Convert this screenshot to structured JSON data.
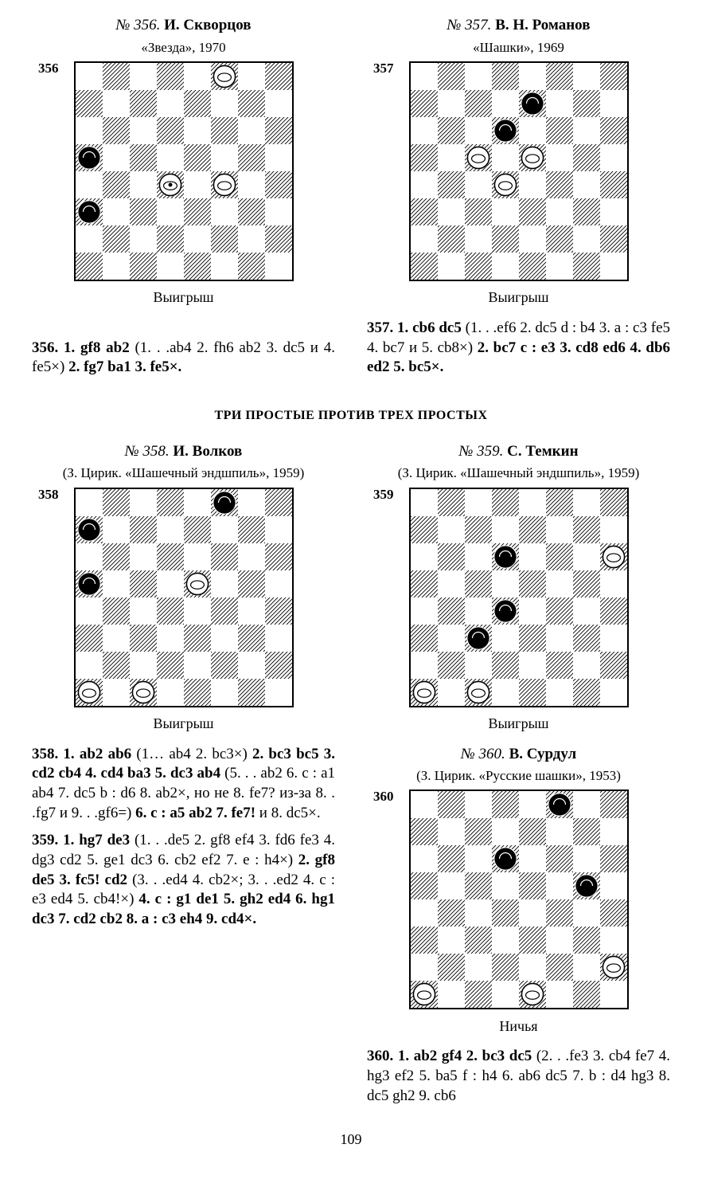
{
  "page_number": "109",
  "section_title": "ТРИ ПРОСТЫЕ ПРОТИВ ТРЕХ ПРОСТЫХ",
  "board_style": {
    "cell": 34,
    "light_fill": "#ffffff",
    "dark_fill_pattern": true,
    "outline": "#000000"
  },
  "problems": {
    "p356": {
      "num_label": "№ 356.",
      "author": "И. Скворцов",
      "source": "«Звезда», 1970",
      "diag_no": "356",
      "caption": "Выигрыш",
      "solution_html": "<b>356. 1. gf8 ab2</b> (1. . .ab4 2. fh6 ab2 3. dc5 и 4. fe5×) <b>2. fg7 ba1 3. fe5×.</b>",
      "pieces": [
        {
          "sq": "f8",
          "color": "white",
          "king": false
        },
        {
          "sq": "a5",
          "color": "black",
          "king": false
        },
        {
          "sq": "d4",
          "color": "white",
          "king": true
        },
        {
          "sq": "f4",
          "color": "white",
          "king": false
        },
        {
          "sq": "a3",
          "color": "black",
          "king": false
        }
      ]
    },
    "p357": {
      "num_label": "№ 357.",
      "author": "В. Н. Романов",
      "source": "«Шашки», 1969",
      "diag_no": "357",
      "caption": "Выигрыш",
      "solution_html": "<b>357. 1. cb6 dc5</b> (1. . .ef6 2. dc5 d : b4 3. a : c3 fe5 4. bc7 и 5. cb8×) <b>2. bc7 c : e3 3. cd8 ed6 4. db6 ed2 5. bc5×.</b>",
      "pieces": [
        {
          "sq": "e7",
          "color": "black",
          "king": false
        },
        {
          "sq": "d6",
          "color": "black",
          "king": false
        },
        {
          "sq": "c5",
          "color": "white",
          "king": false
        },
        {
          "sq": "e5",
          "color": "white",
          "king": false
        },
        {
          "sq": "d4",
          "color": "white",
          "king": false
        }
      ]
    },
    "p358": {
      "num_label": "№ 358.",
      "author": "И. Волков",
      "source": "(З. Цирик. «Шашечный эндшпиль», 1959)",
      "diag_no": "358",
      "caption": "Выигрыш",
      "solution_html": "<b>358. 1. ab2 ab6</b> (1… ab4 2. bc3×) <b>2. bc3 bc5 3. cd2 cb4 4. cd4 ba3 5. dc3 ab4</b> (5. . . ab2 6. c : a1 ab4 7. dc5 b : d6 8. ab2×, но не 8. fe7? из-за 8. . .fg7 и 9. . .gf6=) <b>6. c : a5 ab2 7. fe7!</b> и 8. dc5×.",
      "pieces": [
        {
          "sq": "f8",
          "color": "black",
          "king": false
        },
        {
          "sq": "a7",
          "color": "black",
          "king": false
        },
        {
          "sq": "e5",
          "color": "white",
          "king": false
        },
        {
          "sq": "a5",
          "color": "black",
          "king": false
        },
        {
          "sq": "a1",
          "color": "white",
          "king": false
        },
        {
          "sq": "c1",
          "color": "white",
          "king": false
        }
      ]
    },
    "p359": {
      "num_label": "№ 359.",
      "author": "С. Темкин",
      "source": "(З. Цирик. «Шашечный эндшпиль», 1959)",
      "diag_no": "359",
      "caption": "Выигрыш",
      "solution_html": "<b>359. 1. hg7 de3</b> (1. . .de5 2. gf8 ef4 3. fd6 fe3 4. dg3 cd2 5. ge1 dc3 6. cb2 ef2 7. e : h4×) <b>2. gf8 de5 3. fc5! cd2</b> (3. . .ed4 4. cb2×; 3. . .ed2 4. c : e3 ed4 5. cb4!×) <b>4. c : g1 de1 5. gh2 ed4 6. hg1 dc3 7. cd2 cb2 8. a : c3 eh4 9. cd4×.</b>",
      "pieces": [
        {
          "sq": "d6",
          "color": "black",
          "king": false
        },
        {
          "sq": "h6",
          "color": "white",
          "king": false
        },
        {
          "sq": "d4",
          "color": "black",
          "king": false
        },
        {
          "sq": "c3",
          "color": "black",
          "king": false
        },
        {
          "sq": "a1",
          "color": "white",
          "king": false
        },
        {
          "sq": "c1",
          "color": "white",
          "king": false
        }
      ]
    },
    "p360": {
      "num_label": "№ 360.",
      "author": "В. Сурдул",
      "source": "(З. Цирик. «Русские шашки», 1953)",
      "diag_no": "360",
      "caption": "Ничья",
      "solution_html": "<b>360. 1. ab2 gf4 2. bc3 dc5</b> (2. . .fe3 3. cb4 fe7 4. hg3 ef2 5. ba5 f : h4 6. ab6 dc5 7. b : d4 hg3 8. dc5 gh2 9. cb6",
      "pieces": [
        {
          "sq": "f8",
          "color": "black",
          "king": false
        },
        {
          "sq": "d6",
          "color": "black",
          "king": false
        },
        {
          "sq": "g5",
          "color": "black",
          "king": false
        },
        {
          "sq": "h2",
          "color": "white",
          "king": false
        },
        {
          "sq": "a1",
          "color": "white",
          "king": false
        },
        {
          "sq": "e1",
          "color": "white",
          "king": false
        }
      ]
    }
  }
}
